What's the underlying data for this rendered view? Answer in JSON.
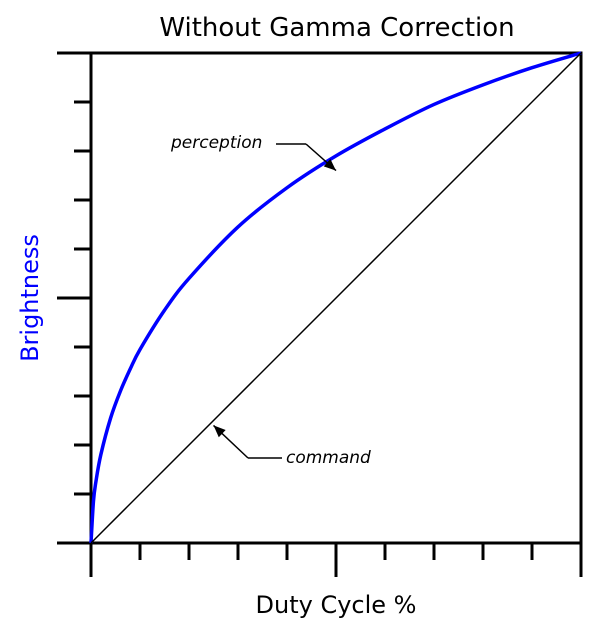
{
  "chart_data": {
    "type": "line",
    "title": "Without Gamma Correction",
    "xlabel": "Duty Cycle %",
    "ylabel": "Brightness",
    "xlim": [
      0,
      1
    ],
    "ylim": [
      0,
      1
    ],
    "grid": false,
    "legend": "none",
    "x_ticks": [
      0,
      0.1,
      0.2,
      0.3,
      0.4,
      0.5,
      0.6,
      0.7,
      0.8,
      0.9,
      1.0
    ],
    "y_ticks": [
      0,
      0.1,
      0.2,
      0.3,
      0.4,
      0.5,
      0.6,
      0.7,
      0.8,
      0.9,
      1.0
    ],
    "series": [
      {
        "name": "perception",
        "color": "#0000ff",
        "x": [
          0,
          0.005,
          0.01,
          0.02,
          0.04,
          0.06,
          0.08,
          0.1,
          0.15,
          0.2,
          0.3,
          0.4,
          0.5,
          0.6,
          0.7,
          0.8,
          0.9,
          1.0
        ],
        "y": [
          0,
          0.085,
          0.125,
          0.18,
          0.255,
          0.31,
          0.355,
          0.395,
          0.475,
          0.54,
          0.645,
          0.725,
          0.79,
          0.845,
          0.895,
          0.935,
          0.97,
          1.0
        ]
      },
      {
        "name": "command",
        "color": "#000000",
        "x": [
          0,
          1
        ],
        "y": [
          0,
          1
        ]
      }
    ],
    "annotations": [
      {
        "text": "perception",
        "series": "perception",
        "x": 0.5,
        "y": 0.76
      },
      {
        "text": "command",
        "series": "command",
        "x": 0.25,
        "y": 0.24
      }
    ]
  }
}
